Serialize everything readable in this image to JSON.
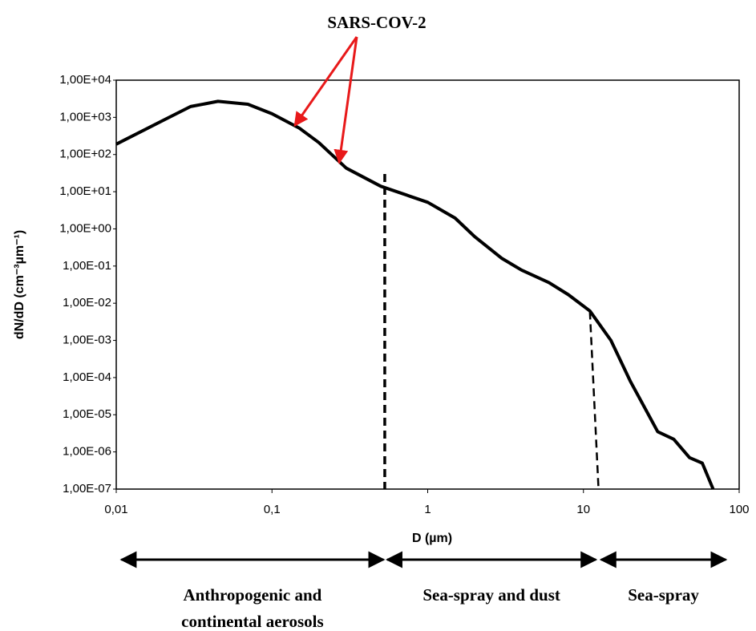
{
  "chart_data": {
    "type": "line",
    "x_label": "D (µm)",
    "y_label": "dN/dD (cm⁻³µm⁻¹)",
    "xscale": "log",
    "yscale": "log",
    "xlim": [
      0.01,
      100
    ],
    "ylim": [
      1e-07,
      10000
    ],
    "xticks": [
      {
        "value": 0.01,
        "label": "0,01"
      },
      {
        "value": 0.1,
        "label": "0,1"
      },
      1,
      10,
      100
    ],
    "yticks": [
      {
        "value": 1e-07,
        "label": "1,00E-07"
      },
      {
        "value": 1e-06,
        "label": "1,00E-06"
      },
      {
        "value": 1e-05,
        "label": "1,00E-05"
      },
      {
        "value": 0.0001,
        "label": "1,00E-04"
      },
      {
        "value": 0.001,
        "label": "1,00E-03"
      },
      {
        "value": 0.01,
        "label": "1,00E-02"
      },
      {
        "value": 0.1,
        "label": "1,00E-01"
      },
      {
        "value": 1,
        "label": "1,00E+00"
      },
      {
        "value": 10,
        "label": "1,00E+01"
      },
      {
        "value": 100,
        "label": "1,00E+02"
      },
      {
        "value": 1000,
        "label": "1,00E+03"
      },
      {
        "value": 10000,
        "label": "1,00E+04"
      }
    ],
    "color": "#000000",
    "x": [
      0.01,
      0.02,
      0.03,
      0.045,
      0.07,
      0.1,
      0.15,
      0.2,
      0.3,
      0.5,
      1,
      1.5,
      2,
      3,
      4,
      6,
      8,
      11,
      15,
      20,
      30,
      38,
      48,
      58,
      68
    ],
    "values": [
      190,
      830,
      1950,
      2700,
      2250,
      1250,
      510,
      210,
      43,
      14,
      5.2,
      1.95,
      0.62,
      0.16,
      0.078,
      0.036,
      0.017,
      0.0062,
      0.001,
      8e-05,
      3.5e-06,
      2.2e-06,
      7e-07,
      5e-07,
      1e-07
    ],
    "dividers": [
      {
        "x": [
          0.53,
          0.53
        ],
        "y": [
          30,
          1e-07
        ]
      },
      {
        "x": [
          11,
          12.5
        ],
        "y": [
          0.006,
          1e-07
        ]
      }
    ],
    "annotation": {
      "text": "SARS-COV-2",
      "color": "#e8191a",
      "points": [
        {
          "x": 0.14,
          "y": 600
        },
        {
          "x": 0.27,
          "y": 60
        }
      ]
    },
    "regions": [
      {
        "label": [
          "Anthropogenic and",
          "continental aerosols"
        ],
        "range": [
          0.0108,
          0.52
        ]
      },
      {
        "label": [
          "Sea-spray and dust"
        ],
        "range": [
          0.55,
          12
        ]
      },
      {
        "label": [
          "Sea-spray"
        ],
        "range": [
          13,
          82
        ]
      }
    ]
  }
}
